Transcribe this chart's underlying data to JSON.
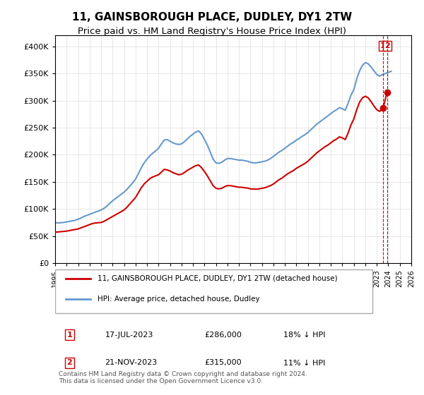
{
  "title": "11, GAINSBOROUGH PLACE, DUDLEY, DY1 2TW",
  "subtitle": "Price paid vs. HM Land Registry's House Price Index (HPI)",
  "title_fontsize": 11,
  "subtitle_fontsize": 9.5,
  "ylim": [
    0,
    420000
  ],
  "yticks": [
    0,
    50000,
    100000,
    150000,
    200000,
    250000,
    300000,
    350000,
    400000
  ],
  "ytick_labels": [
    "£0",
    "£50K",
    "£100K",
    "£150K",
    "£200K",
    "£250K",
    "£300K",
    "£350K",
    "£400K"
  ],
  "x_start_year": 1995,
  "x_end_year": 2026,
  "hpi_color": "#6699cc",
  "price_color": "#cc0000",
  "annotation_color": "#cc0000",
  "dashed_line_color": "#cc0000",
  "marker_box_color": "#cc0000",
  "legend_label_hpi": "HPI: Average price, detached house, Dudley",
  "legend_label_price": "11, GAINSBOROUGH PLACE, DUDLEY, DY1 2TW (detached house)",
  "sale1_label": "1",
  "sale1_date": "17-JUL-2023",
  "sale1_price": "£286,000",
  "sale1_hpi": "18% ↓ HPI",
  "sale1_year": 2023.54,
  "sale1_value": 286000,
  "sale2_label": "2",
  "sale2_date": "21-NOV-2023",
  "sale2_price": "£315,000",
  "sale2_hpi": "11% ↓ HPI",
  "sale2_year": 2023.89,
  "sale2_value": 315000,
  "footer_text": "Contains HM Land Registry data © Crown copyright and database right 2024.\nThis data is licensed under the Open Government Licence v3.0.",
  "hpi_data_x": [
    1995.0,
    1995.25,
    1995.5,
    1995.75,
    1996.0,
    1996.25,
    1996.5,
    1996.75,
    1997.0,
    1997.25,
    1997.5,
    1997.75,
    1998.0,
    1998.25,
    1998.5,
    1998.75,
    1999.0,
    1999.25,
    1999.5,
    1999.75,
    2000.0,
    2000.25,
    2000.5,
    2000.75,
    2001.0,
    2001.25,
    2001.5,
    2001.75,
    2002.0,
    2002.25,
    2002.5,
    2002.75,
    2003.0,
    2003.25,
    2003.5,
    2003.75,
    2004.0,
    2004.25,
    2004.5,
    2004.75,
    2005.0,
    2005.25,
    2005.5,
    2005.75,
    2006.0,
    2006.25,
    2006.5,
    2006.75,
    2007.0,
    2007.25,
    2007.5,
    2007.75,
    2008.0,
    2008.25,
    2008.5,
    2008.75,
    2009.0,
    2009.25,
    2009.5,
    2009.75,
    2010.0,
    2010.25,
    2010.5,
    2010.75,
    2011.0,
    2011.25,
    2011.5,
    2011.75,
    2012.0,
    2012.25,
    2012.5,
    2012.75,
    2013.0,
    2013.25,
    2013.5,
    2013.75,
    2014.0,
    2014.25,
    2014.5,
    2014.75,
    2015.0,
    2015.25,
    2015.5,
    2015.75,
    2016.0,
    2016.25,
    2016.5,
    2016.75,
    2017.0,
    2017.25,
    2017.5,
    2017.75,
    2018.0,
    2018.25,
    2018.5,
    2018.75,
    2019.0,
    2019.25,
    2019.5,
    2019.75,
    2020.0,
    2020.25,
    2020.5,
    2020.75,
    2021.0,
    2021.25,
    2021.5,
    2021.75,
    2022.0,
    2022.25,
    2022.5,
    2022.75,
    2023.0,
    2023.25,
    2023.5,
    2023.75,
    2024.0,
    2024.25
  ],
  "hpi_data_y": [
    75000,
    74000,
    74500,
    75000,
    76000,
    77000,
    78000,
    79000,
    81000,
    83000,
    86000,
    88000,
    90000,
    92000,
    94000,
    96000,
    98000,
    101000,
    105000,
    110000,
    115000,
    119000,
    123000,
    127000,
    131000,
    136000,
    142000,
    148000,
    155000,
    165000,
    176000,
    185000,
    192000,
    198000,
    203000,
    207000,
    212000,
    220000,
    227000,
    228000,
    225000,
    222000,
    220000,
    219000,
    220000,
    224000,
    229000,
    234000,
    238000,
    242000,
    244000,
    238000,
    228000,
    218000,
    205000,
    192000,
    185000,
    184000,
    186000,
    190000,
    193000,
    193000,
    192000,
    191000,
    190000,
    190000,
    189000,
    188000,
    186000,
    185000,
    185000,
    186000,
    187000,
    188000,
    190000,
    193000,
    197000,
    201000,
    205000,
    208000,
    212000,
    216000,
    220000,
    223000,
    227000,
    230000,
    234000,
    237000,
    241000,
    246000,
    251000,
    256000,
    260000,
    264000,
    268000,
    272000,
    276000,
    280000,
    283000,
    287000,
    285000,
    282000,
    295000,
    310000,
    320000,
    340000,
    355000,
    365000,
    370000,
    368000,
    362000,
    355000,
    348000,
    345000,
    348000,
    350000,
    352000,
    354000
  ],
  "price_data_x": [
    1995.0,
    1995.25,
    1995.5,
    1995.75,
    1996.0,
    1996.25,
    1996.5,
    1996.75,
    1997.0,
    1997.25,
    1997.5,
    1997.75,
    1998.0,
    1998.25,
    1998.5,
    1998.75,
    1999.0,
    1999.25,
    1999.5,
    1999.75,
    2000.0,
    2000.25,
    2000.5,
    2000.75,
    2001.0,
    2001.25,
    2001.5,
    2001.75,
    2002.0,
    2002.25,
    2002.5,
    2002.75,
    2003.0,
    2003.25,
    2003.5,
    2003.75,
    2004.0,
    2004.25,
    2004.5,
    2004.75,
    2005.0,
    2005.25,
    2005.5,
    2005.75,
    2006.0,
    2006.25,
    2006.5,
    2006.75,
    2007.0,
    2007.25,
    2007.5,
    2007.75,
    2008.0,
    2008.25,
    2008.5,
    2008.75,
    2009.0,
    2009.25,
    2009.5,
    2009.75,
    2010.0,
    2010.25,
    2010.5,
    2010.75,
    2011.0,
    2011.25,
    2011.5,
    2011.75,
    2012.0,
    2012.25,
    2012.5,
    2012.75,
    2013.0,
    2013.25,
    2013.5,
    2013.75,
    2014.0,
    2014.25,
    2014.5,
    2014.75,
    2015.0,
    2015.25,
    2015.5,
    2015.75,
    2016.0,
    2016.25,
    2016.5,
    2016.75,
    2017.0,
    2017.25,
    2017.5,
    2017.75,
    2018.0,
    2018.25,
    2018.5,
    2018.75,
    2019.0,
    2019.25,
    2019.5,
    2019.75,
    2020.0,
    2020.25,
    2020.5,
    2020.75,
    2021.0,
    2021.25,
    2021.5,
    2021.75,
    2022.0,
    2022.25,
    2022.5,
    2022.75,
    2023.0,
    2023.25,
    2023.54,
    2023.89
  ],
  "price_data_y": [
    57000,
    57500,
    58000,
    58500,
    59000,
    60000,
    61000,
    62000,
    63000,
    65000,
    67000,
    69000,
    71000,
    73000,
    74000,
    74500,
    75000,
    77000,
    80000,
    83000,
    86000,
    89000,
    92000,
    95000,
    98000,
    103000,
    109000,
    115000,
    121000,
    130000,
    139000,
    146000,
    151000,
    156000,
    159000,
    161000,
    163000,
    168000,
    173000,
    172000,
    170000,
    167000,
    165000,
    163000,
    164000,
    167000,
    171000,
    174000,
    177000,
    180000,
    181000,
    176000,
    169000,
    161000,
    152000,
    143000,
    138000,
    137000,
    138000,
    141000,
    143000,
    143000,
    142000,
    141000,
    140000,
    140000,
    139000,
    138500,
    137000,
    136500,
    136500,
    137000,
    138000,
    139000,
    141000,
    143000,
    146000,
    150000,
    154000,
    157000,
    161000,
    165000,
    168000,
    171000,
    175000,
    178000,
    181000,
    184000,
    188000,
    193000,
    198000,
    203000,
    207000,
    211000,
    215000,
    218000,
    222000,
    226000,
    229000,
    233000,
    231000,
    228000,
    240000,
    255000,
    266000,
    283000,
    297000,
    305000,
    308000,
    305000,
    298000,
    290000,
    283000,
    280000,
    286000,
    315000
  ]
}
